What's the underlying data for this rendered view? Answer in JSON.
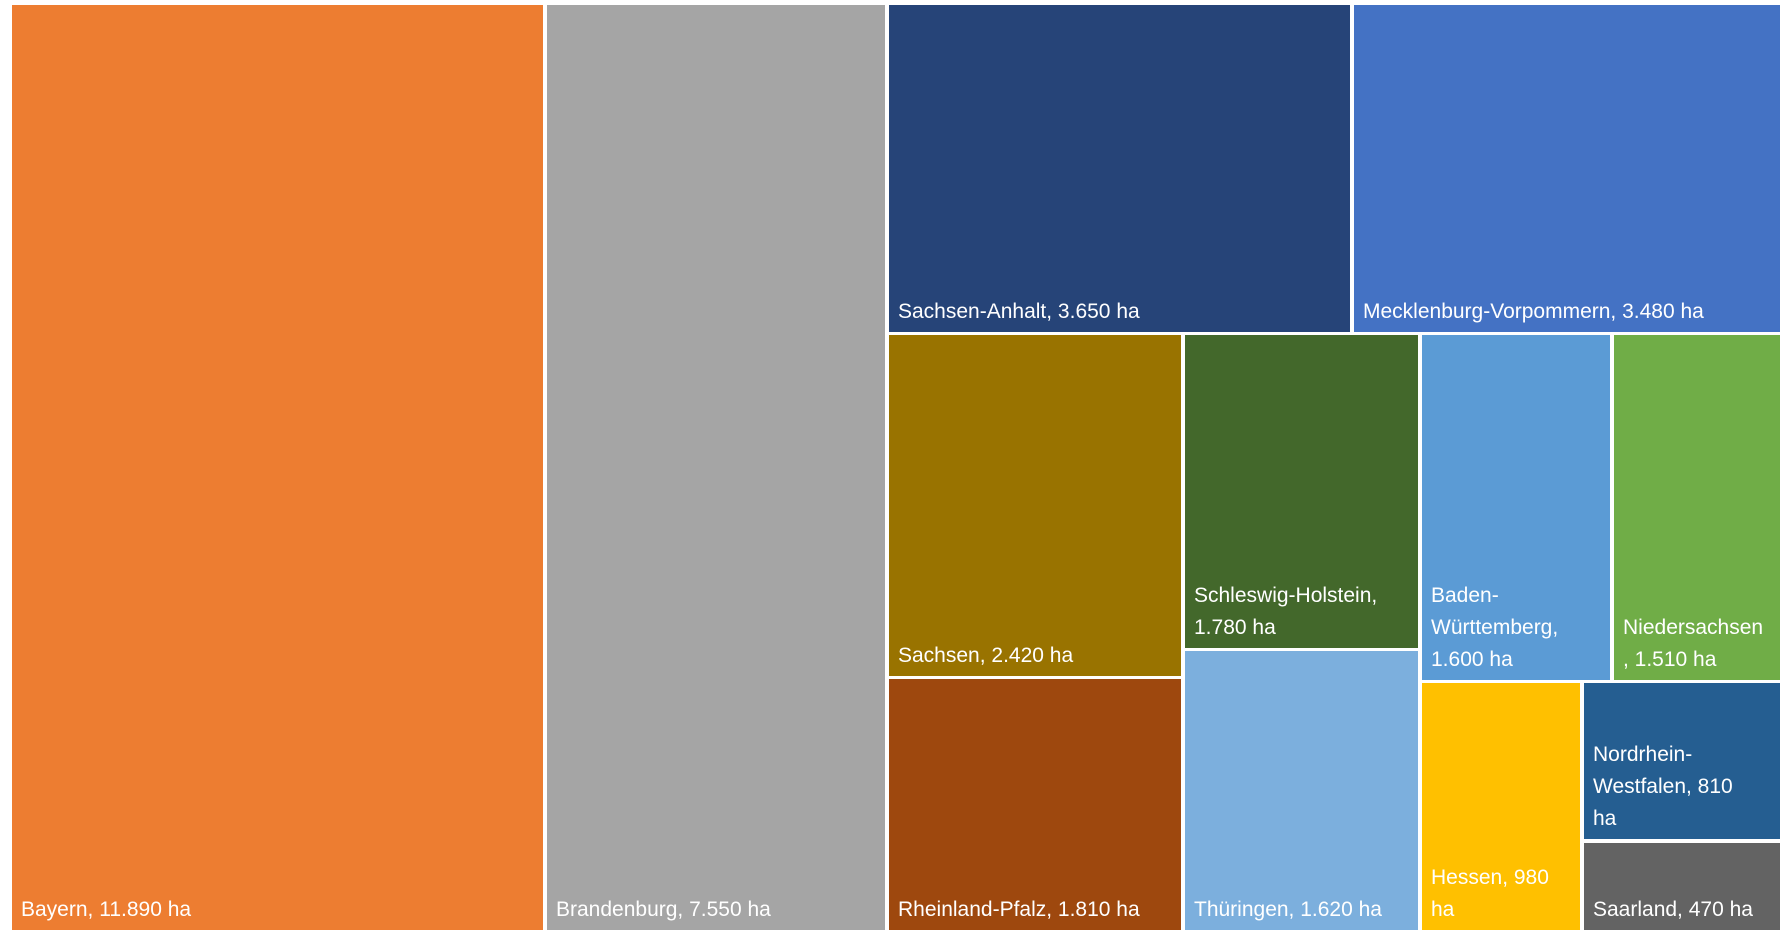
{
  "chart_data": {
    "type": "treemap",
    "title": "",
    "unit": "ha",
    "items": [
      {
        "name": "Bayern",
        "value": 11890,
        "label_lines": [
          "Bayern, 11.890 ha"
        ],
        "color": "#ED7D31"
      },
      {
        "name": "Brandenburg",
        "value": 7550,
        "label_lines": [
          "Brandenburg, 7.550 ha"
        ],
        "color": "#A5A5A5"
      },
      {
        "name": "Sachsen-Anhalt",
        "value": 3650,
        "label_lines": [
          "Sachsen-Anhalt, 3.650 ha"
        ],
        "color": "#264478"
      },
      {
        "name": "Mecklenburg-Vorpommern",
        "value": 3480,
        "label_lines": [
          "Mecklenburg-Vorpommern, 3.480 ha"
        ],
        "color": "#4472C4"
      },
      {
        "name": "Sachsen",
        "value": 2420,
        "label_lines": [
          "Sachsen, 2.420 ha"
        ],
        "color": "#997300"
      },
      {
        "name": "Rheinland-Pfalz",
        "value": 1810,
        "label_lines": [
          "Rheinland-Pfalz, 1.810 ha"
        ],
        "color": "#9E480E"
      },
      {
        "name": "Schleswig-Holstein",
        "value": 1780,
        "label_lines": [
          "Schleswig-Holstein,",
          "1.780 ha"
        ],
        "color": "#43682B"
      },
      {
        "name": "Thüringen",
        "value": 1620,
        "label_lines": [
          "Thüringen, 1.620 ha"
        ],
        "color": "#7CAFDD"
      },
      {
        "name": "Baden-Württemberg",
        "value": 1600,
        "label_lines": [
          "Baden-",
          "Württemberg,",
          "1.600 ha"
        ],
        "color": "#5B9BD5"
      },
      {
        "name": "Niedersachsen",
        "value": 1510,
        "label_lines": [
          "Niedersachsen",
          ", 1.510 ha"
        ],
        "color": "#70AD47"
      },
      {
        "name": "Hessen",
        "value": 980,
        "label_lines": [
          "Hessen, 980",
          "ha"
        ],
        "color": "#FFC000"
      },
      {
        "name": "Nordrhein-Westfalen",
        "value": 810,
        "label_lines": [
          "Nordrhein-",
          "Westfalen, 810",
          "ha"
        ],
        "color": "#255E91"
      },
      {
        "name": "Saarland",
        "value": 470,
        "label_lines": [
          "Saarland, 470 ha"
        ],
        "color": "#636363"
      }
    ]
  }
}
